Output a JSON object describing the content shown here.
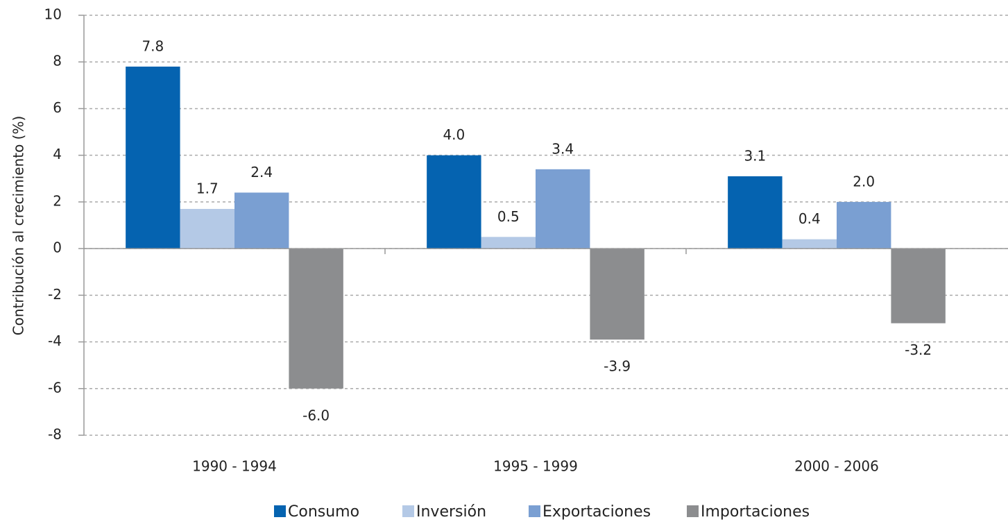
{
  "chart_data": {
    "type": "bar",
    "y_label": "Contribución al crecimiento (%)",
    "categories": [
      "1990 - 1994",
      "1995 - 1999",
      "2000 - 2006"
    ],
    "series": [
      {
        "name": "Consumo",
        "color": "#0563b0",
        "values": [
          7.8,
          4.0,
          3.1
        ],
        "value_labels": [
          "7.8",
          "4.0",
          "3.1"
        ]
      },
      {
        "name": "Inversión",
        "color": "#b4c9e6",
        "values": [
          1.7,
          0.5,
          0.4
        ],
        "value_labels": [
          "1.7",
          "0.5",
          "0.4"
        ]
      },
      {
        "name": "Exportaciones",
        "color": "#7a9fd2",
        "values": [
          2.4,
          3.4,
          2.0
        ],
        "value_labels": [
          "2.4",
          "3.4",
          "2.0"
        ]
      },
      {
        "name": "Importaciones",
        "color": "#8c8d8f",
        "values": [
          -6.0,
          -3.9,
          -3.2
        ],
        "value_labels": [
          "-6.0",
          "-3.9",
          "-3.2"
        ]
      }
    ],
    "ylim": [
      -8,
      10
    ],
    "yticks": [
      -8,
      -6,
      -4,
      -2,
      0,
      2,
      4,
      6,
      8,
      10
    ],
    "grid": true,
    "legend": "bottom"
  }
}
